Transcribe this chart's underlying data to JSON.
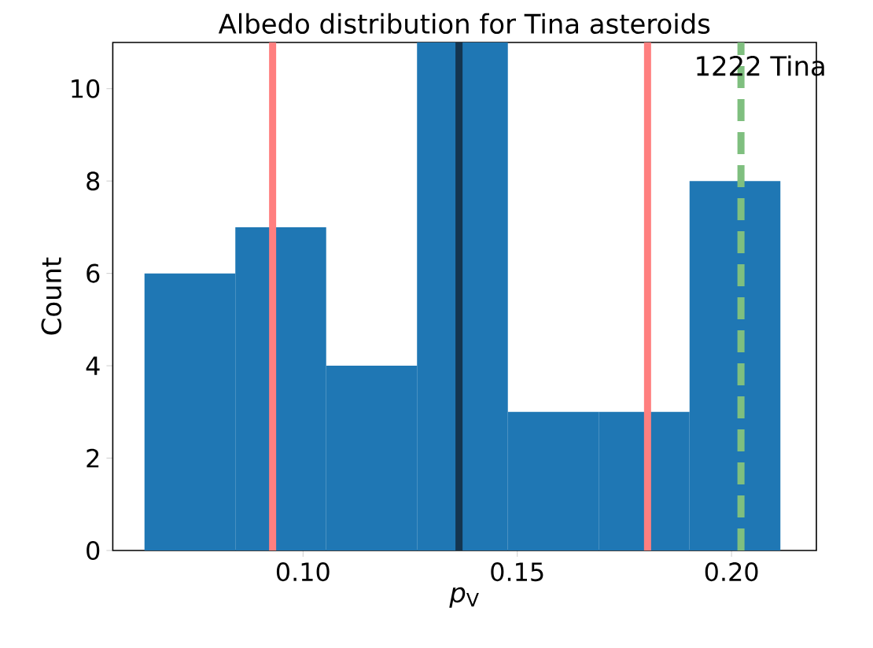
{
  "chart_data": {
    "type": "histogram",
    "title": "Albedo distribution for Tina asteroids",
    "xlabel": "*p*$_{V}$",
    "ylabel": "Count",
    "bins": [
      0.063,
      0.0842,
      0.1054,
      0.1266,
      0.1478,
      0.169,
      0.1902,
      0.2114
    ],
    "values": [
      6,
      7,
      4,
      11,
      3,
      3,
      8
    ],
    "color": "#1f77b4",
    "xlim": [
      0.0556,
      0.2198
    ],
    "ylim": [
      0,
      11
    ],
    "xticks": [
      {
        "value": 0.1,
        "label": "0.10"
      },
      {
        "value": 0.15,
        "label": "0.15"
      },
      {
        "value": 0.2,
        "label": "0.20"
      }
    ],
    "yticks": [
      0,
      2,
      4,
      6,
      8,
      10
    ],
    "ref_lines": [
      {
        "axis": "x",
        "value": 0.0929,
        "color": "#ff7f7f"
      },
      {
        "axis": "x",
        "value": 0.1804,
        "color": "#ff7f7f"
      },
      {
        "axis": "x",
        "value": 0.1364,
        "color": "#143550"
      },
      {
        "axis": "x",
        "value": 0.2022,
        "color": "#7fbf7f",
        "line_style": "dashed",
        "label": "1222 Tina"
      }
    ]
  }
}
